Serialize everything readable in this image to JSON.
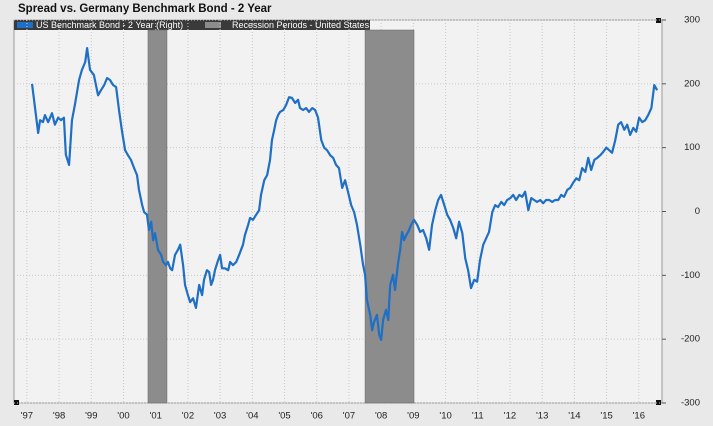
{
  "chart_data": {
    "type": "line",
    "title": "Spread vs. Germany Benchmark Bond - 2 Year",
    "x": [
      1997.16,
      1997.35,
      1997.41,
      1997.5,
      1997.56,
      1997.66,
      1997.78,
      1997.87,
      1997.97,
      1998.06,
      1998.15,
      1998.21,
      1998.31,
      1998.4,
      1998.49,
      1998.62,
      1998.71,
      1998.81,
      1998.87,
      1998.96,
      1999.08,
      1999.21,
      1999.3,
      1999.4,
      1999.49,
      1999.58,
      1999.68,
      1999.77,
      1999.86,
      1999.95,
      2000.05,
      2000.14,
      2000.23,
      2000.33,
      2000.42,
      2000.48,
      2000.58,
      2000.64,
      2000.73,
      2000.79,
      2000.86,
      2000.92,
      2000.98,
      2001.07,
      2001.17,
      2001.23,
      2001.32,
      2001.38,
      2001.45,
      2001.51,
      2001.6,
      2001.69,
      2001.76,
      2001.85,
      2001.91,
      2002.0,
      2002.07,
      2002.16,
      2002.25,
      2002.35,
      2002.44,
      2002.5,
      2002.59,
      2002.66,
      2002.72,
      2002.78,
      2002.84,
      2002.94,
      2003.0,
      2003.06,
      2003.15,
      2003.25,
      2003.31,
      2003.4,
      2003.5,
      2003.59,
      2003.65,
      2003.71,
      2003.77,
      2003.87,
      2003.93,
      2004.02,
      2004.12,
      2004.21,
      2004.27,
      2004.37,
      2004.46,
      2004.55,
      2004.61,
      2004.68,
      2004.74,
      2004.8,
      2004.86,
      2004.96,
      2005.05,
      2005.14,
      2005.23,
      2005.33,
      2005.42,
      2005.48,
      2005.58,
      2005.67,
      2005.76,
      2005.86,
      2005.95,
      2006.04,
      2006.14,
      2006.23,
      2006.32,
      2006.42,
      2006.51,
      2006.6,
      2006.69,
      2006.79,
      2006.88,
      2006.97,
      2007.07,
      2007.16,
      2007.25,
      2007.35,
      2007.44,
      2007.5,
      2007.56,
      2007.66,
      2007.72,
      2007.78,
      2007.87,
      2007.94,
      2008.0,
      2008.06,
      2008.15,
      2008.22,
      2008.28,
      2008.37,
      2008.43,
      2008.53,
      2008.59,
      2008.65,
      2008.71,
      2008.78,
      2008.84,
      2008.93,
      2009.02,
      2009.12,
      2009.21,
      2009.3,
      2009.4,
      2009.49,
      2009.58,
      2009.68,
      2009.77,
      2009.86,
      2009.96,
      2010.05,
      2010.14,
      2010.24,
      2010.33,
      2010.42,
      2010.52,
      2010.61,
      2010.7,
      2010.79,
      2010.89,
      2010.98,
      2011.07,
      2011.17,
      2011.26,
      2011.35,
      2011.45,
      2011.54,
      2011.63,
      2011.73,
      2011.82,
      2011.91,
      2012.01,
      2012.1,
      2012.19,
      2012.29,
      2012.38,
      2012.47,
      2012.57,
      2012.66,
      2012.75,
      2012.84,
      2012.94,
      2013.03,
      2013.12,
      2013.22,
      2013.31,
      2013.4,
      2013.5,
      2013.59,
      2013.68,
      2013.78,
      2013.87,
      2013.96,
      2014.06,
      2014.15,
      2014.24,
      2014.34,
      2014.43,
      2014.52,
      2014.62,
      2014.71,
      2014.8,
      2014.89,
      2014.99,
      2015.08,
      2015.17,
      2015.27,
      2015.36,
      2015.45,
      2015.55,
      2015.64,
      2015.73,
      2015.83,
      2015.92,
      2016.01,
      2016.11,
      2016.2,
      2016.29,
      2016.39,
      2016.48,
      2016.57
    ],
    "series": [
      {
        "name": "US Benchmark Bond - 2 Year (Right)",
        "color": "#1f6fc5",
        "values": [
          200,
          123,
          143,
          140,
          151,
          140,
          154,
          136,
          147,
          143,
          147,
          89,
          73,
          143,
          167,
          206,
          222,
          234,
          256,
          222,
          214,
          182,
          190,
          198,
          209,
          206,
          198,
          195,
          159,
          127,
          96,
          88,
          81,
          68,
          57,
          34,
          10,
          -1,
          -5,
          -29,
          -16,
          -45,
          -34,
          -60,
          -68,
          -79,
          -84,
          -79,
          -89,
          -92,
          -68,
          -60,
          -52,
          -84,
          -115,
          -131,
          -142,
          -136,
          -151,
          -115,
          -131,
          -107,
          -92,
          -95,
          -115,
          -107,
          -92,
          -76,
          -68,
          -89,
          -89,
          -92,
          -79,
          -84,
          -79,
          -68,
          -60,
          -52,
          -37,
          -21,
          -10,
          -13,
          -5,
          2,
          26,
          49,
          57,
          81,
          112,
          128,
          143,
          151,
          156,
          159,
          167,
          179,
          178,
          170,
          175,
          162,
          159,
          162,
          156,
          162,
          159,
          147,
          112,
          100,
          96,
          88,
          84,
          73,
          68,
          37,
          49,
          31,
          10,
          -1,
          -21,
          -52,
          -84,
          -99,
          -139,
          -162,
          -186,
          -173,
          -162,
          -193,
          -201,
          -170,
          -154,
          -170,
          -115,
          -99,
          -123,
          -79,
          -60,
          -32,
          -45,
          -37,
          -32,
          -21,
          -13,
          -21,
          -32,
          -29,
          -42,
          -60,
          -21,
          2,
          18,
          26,
          10,
          -5,
          -13,
          -26,
          -42,
          -16,
          -34,
          -73,
          -92,
          -120,
          -107,
          -110,
          -76,
          -52,
          -42,
          -32,
          -1,
          10,
          7,
          15,
          10,
          18,
          21,
          26,
          18,
          26,
          23,
          31,
          2,
          21,
          18,
          15,
          18,
          13,
          18,
          18,
          15,
          18,
          18,
          26,
          23,
          34,
          37,
          45,
          52,
          49,
          68,
          62,
          84,
          65,
          81,
          84,
          88,
          93,
          100,
          96,
          92,
          112,
          136,
          140,
          128,
          136,
          120,
          131,
          125,
          147,
          140,
          143,
          151,
          162,
          198,
          190
        ]
      }
    ],
    "recessions": {
      "name": "Recession Periods - United States",
      "color": "#8c8c8c",
      "periods": [
        [
          2000.76,
          2001.35
        ],
        [
          2007.5,
          2009.02
        ]
      ]
    },
    "xlim": [
      1996.6,
      2016.72
    ],
    "xticks": [
      {
        "value": 1997,
        "label": "'97"
      },
      {
        "value": 1998,
        "label": "'98"
      },
      {
        "value": 1999,
        "label": "'99"
      },
      {
        "value": 2000,
        "label": "'00"
      },
      {
        "value": 2001,
        "label": "'01"
      },
      {
        "value": 2002,
        "label": "'02"
      },
      {
        "value": 2003,
        "label": "'03"
      },
      {
        "value": 2004,
        "label": "'04"
      },
      {
        "value": 2005,
        "label": "'05"
      },
      {
        "value": 2006,
        "label": "'06"
      },
      {
        "value": 2007,
        "label": "'07"
      },
      {
        "value": 2008,
        "label": "'08"
      },
      {
        "value": 2009,
        "label": "'09"
      },
      {
        "value": 2010,
        "label": "'10"
      },
      {
        "value": 2011,
        "label": "'11"
      },
      {
        "value": 2012,
        "label": "'12"
      },
      {
        "value": 2013,
        "label": "'13"
      },
      {
        "value": 2014,
        "label": "'14"
      },
      {
        "value": 2015,
        "label": "'15"
      },
      {
        "value": 2016,
        "label": "'16"
      }
    ],
    "ylim": [
      -300,
      300
    ],
    "yticks": [
      -300,
      -200,
      -100,
      0,
      100,
      200,
      300
    ],
    "grid": true
  }
}
